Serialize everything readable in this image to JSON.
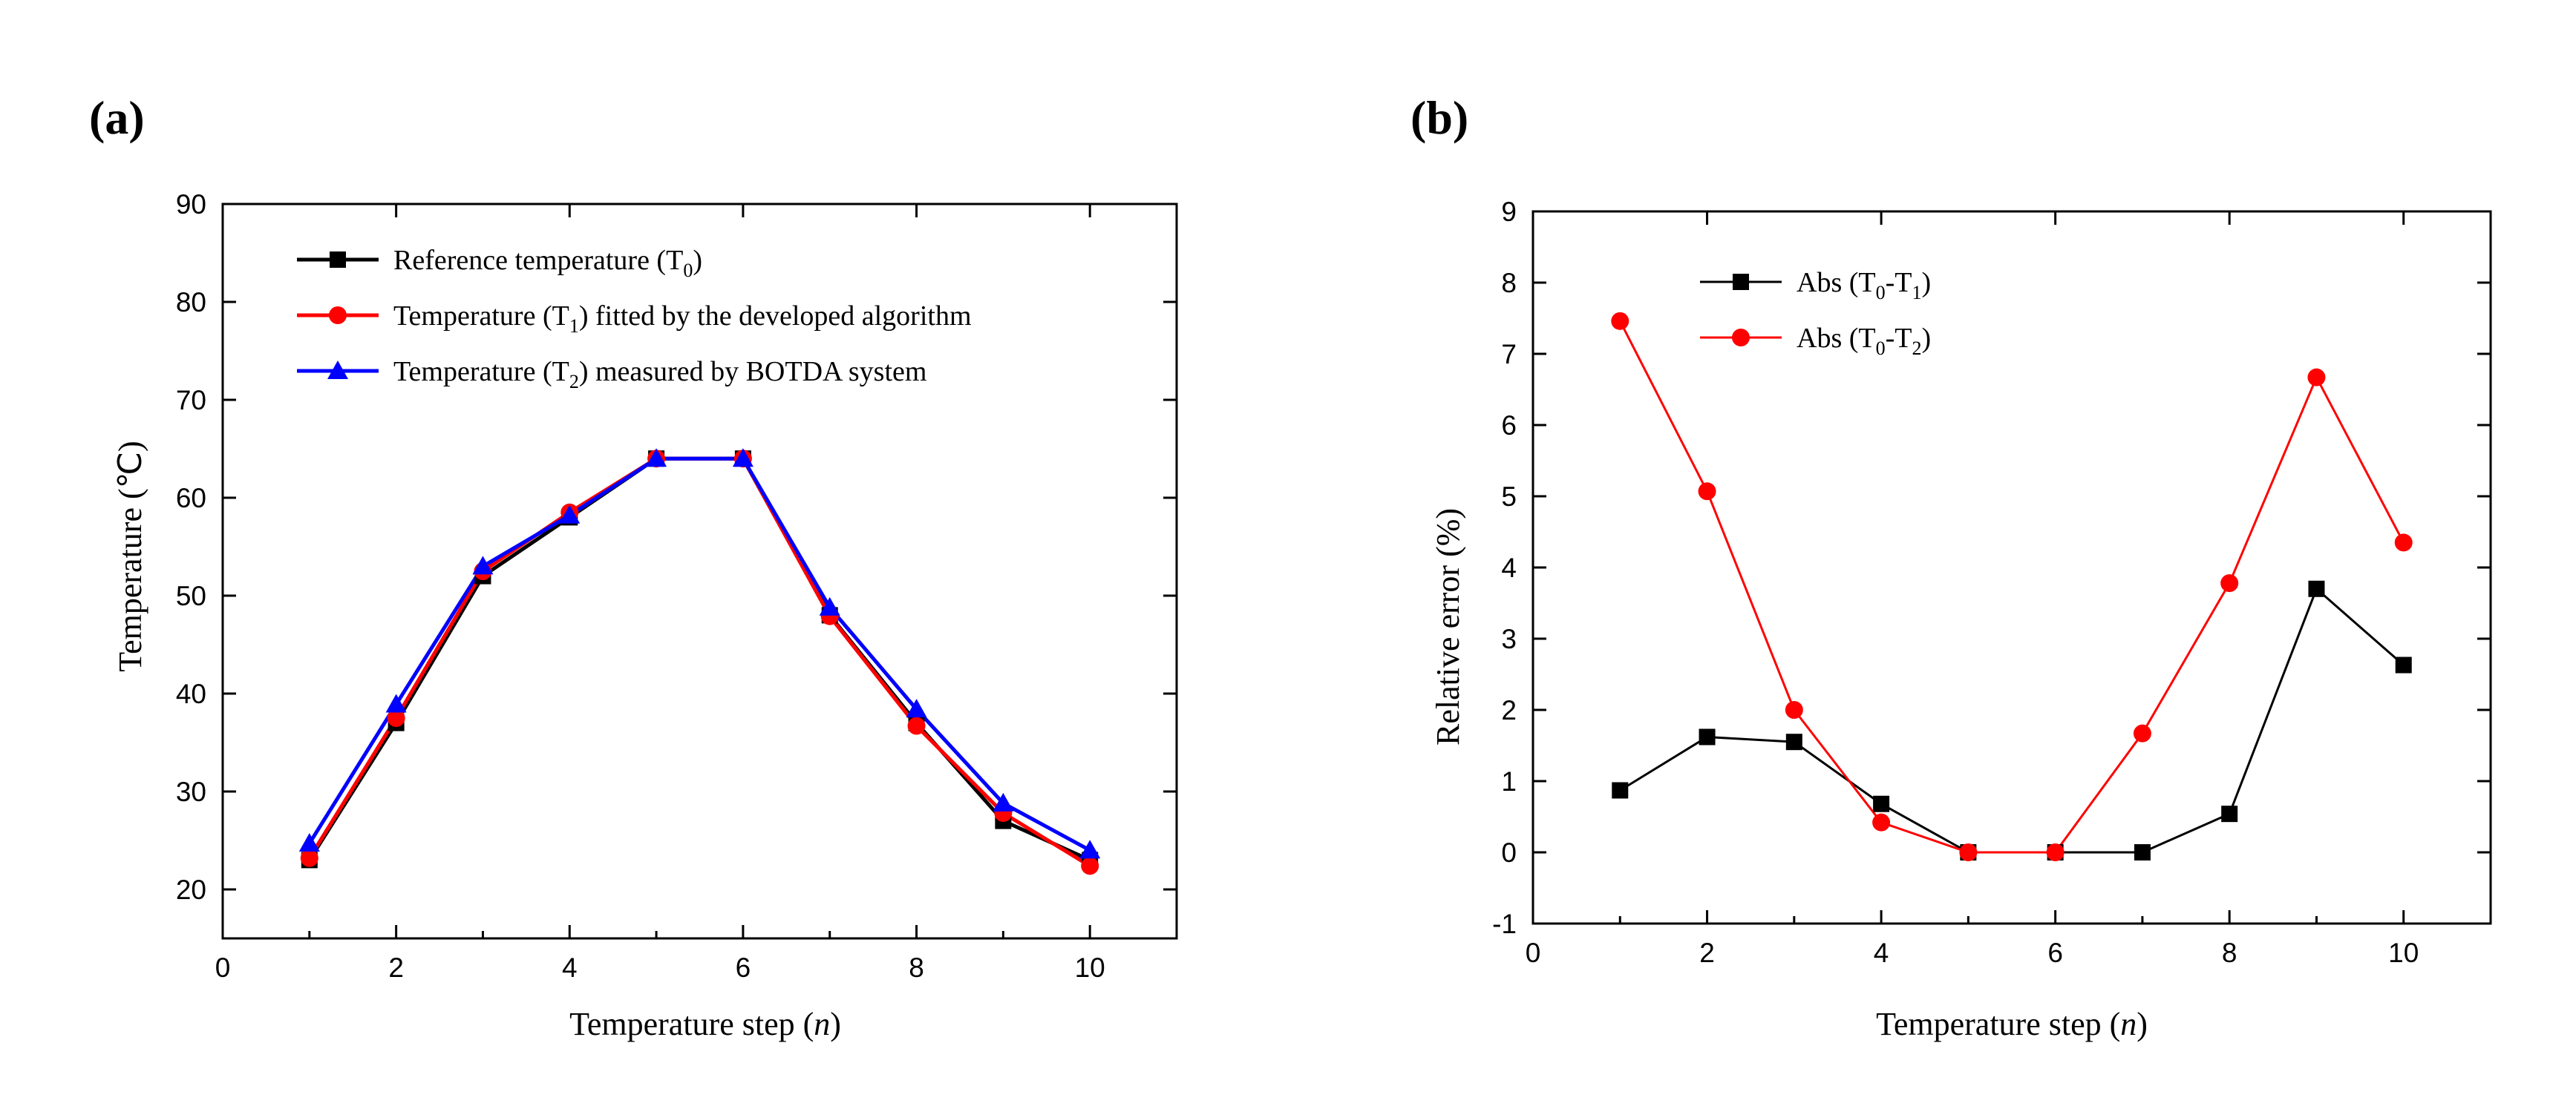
{
  "chart_data": [
    {
      "panel_label": "(a)",
      "type": "line",
      "xlabel": "Temperature step (n)",
      "xlabel_parts": {
        "prefix": "Temperature step (",
        "var": "n",
        "suffix": ")"
      },
      "ylabel": "Temperature (℃)",
      "xlim": [
        0,
        11
      ],
      "ylim": [
        15,
        90
      ],
      "xticks": [
        0,
        2,
        4,
        6,
        8,
        10
      ],
      "yticks": [
        20,
        30,
        40,
        50,
        60,
        70,
        80,
        90
      ],
      "legend_position": "top-left",
      "x": [
        1,
        2,
        3,
        4,
        5,
        6,
        7,
        8,
        9,
        10
      ],
      "series": [
        {
          "name": "Reference temperature (T0)",
          "legend_parts": [
            "Reference temperature (T",
            "0",
            ")"
          ],
          "color": "#000000",
          "marker": "square",
          "values": [
            23.0,
            37.0,
            52.0,
            58.0,
            64.0,
            64.0,
            48.0,
            37.0,
            27.0,
            23.0
          ]
        },
        {
          "name": "Temperature (T1) fitted by the developed algorithm",
          "legend_parts": [
            "Temperature (T",
            "1",
            ") fitted by the developed algorithm"
          ],
          "color": "#ff0000",
          "marker": "circle",
          "values": [
            23.2,
            37.5,
            52.5,
            58.5,
            64.0,
            64.0,
            47.9,
            36.7,
            27.8,
            22.4
          ]
        },
        {
          "name": "Temperature (T2) measured by BOTDA system",
          "legend_parts": [
            "Temperature (T",
            "2",
            ") measured by BOTDA system"
          ],
          "color": "#0000ff",
          "marker": "triangle",
          "values": [
            24.7,
            38.9,
            53.0,
            58.2,
            64.0,
            64.0,
            48.8,
            38.4,
            28.8,
            24.0
          ]
        }
      ]
    },
    {
      "panel_label": "(b)",
      "type": "line",
      "xlabel": "Temperature step (n)",
      "xlabel_parts": {
        "prefix": "Temperature step (",
        "var": "n",
        "suffix": ")"
      },
      "ylabel": "Relative error (%)",
      "xlim": [
        0,
        11
      ],
      "ylim": [
        -1,
        9
      ],
      "xticks": [
        0,
        2,
        4,
        6,
        8,
        10
      ],
      "yticks": [
        -1,
        0,
        1,
        2,
        3,
        4,
        5,
        6,
        7,
        8,
        9
      ],
      "legend_position": "top-left",
      "x": [
        1,
        2,
        3,
        4,
        5,
        6,
        7,
        8,
        9,
        10
      ],
      "series": [
        {
          "name": "Abs (T0-T1)",
          "legend_parts": [
            "Abs (T",
            "0",
            "-T",
            "1",
            ")"
          ],
          "color": "#000000",
          "marker": "square",
          "values": [
            0.87,
            1.62,
            1.55,
            0.68,
            0.0,
            0.0,
            0.0,
            0.54,
            3.7,
            2.63
          ]
        },
        {
          "name": "Abs (T0-T2)",
          "legend_parts": [
            "Abs (T",
            "0",
            "-T",
            "2",
            ")"
          ],
          "color": "#ff0000",
          "marker": "circle",
          "values": [
            7.46,
            5.07,
            2.0,
            0.42,
            0.0,
            0.0,
            1.67,
            3.78,
            6.67,
            4.35
          ]
        }
      ]
    }
  ]
}
